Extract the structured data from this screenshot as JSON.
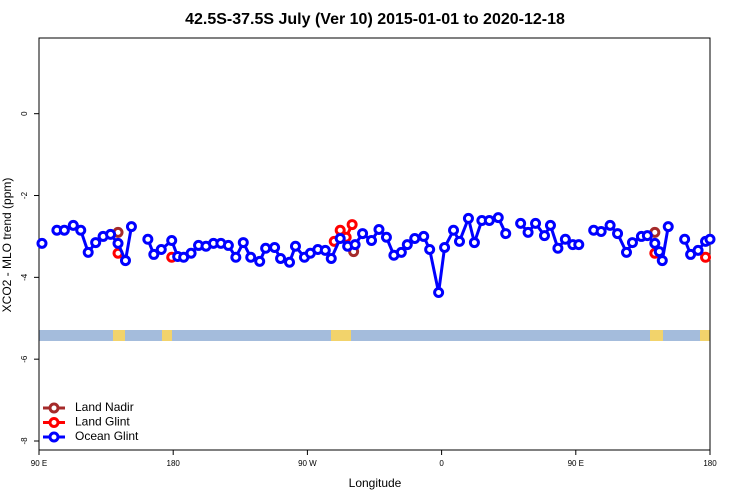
{
  "chart_data": {
    "type": "line",
    "title": "42.5S-37.5S July (Ver 10)   2015-01-01 to 2020-12-18",
    "x_label": "Longitude",
    "y_label": "XCO2 - MLO trend (ppm)",
    "xlim": [
      90,
      540
    ],
    "xticks": [
      {
        "value": 90,
        "label": "90 E"
      },
      {
        "value": 180,
        "label": "180"
      },
      {
        "value": 270,
        "label": "90 W"
      },
      {
        "value": 360,
        "label": "0"
      },
      {
        "value": 450,
        "label": "90 E"
      },
      {
        "value": 540,
        "label": "180"
      }
    ],
    "ylim": [
      -8.22,
      1.85
    ],
    "yticks": [
      0,
      -2,
      -4,
      -6,
      -8
    ],
    "legend": "bottom-left",
    "series": [
      {
        "name": "Land Nadir",
        "color": "#a52a2a",
        "x": [
          143,
          null,
          301,
          null,
          503
        ],
        "values": [
          -2.9,
          null,
          -3.37,
          null,
          -2.9
        ]
      },
      {
        "name": "Land Glint",
        "color": "#ff0000",
        "x": [
          143,
          null,
          179,
          null,
          288,
          292,
          296,
          300,
          null,
          503,
          null,
          537
        ],
        "values": [
          -3.41,
          null,
          -3.51,
          null,
          -3.12,
          -2.85,
          -3.02,
          -2.71,
          null,
          -3.41,
          null,
          -3.51
        ]
      },
      {
        "name": "Ocean Glint",
        "color": "#0000ff",
        "x": [
          92,
          null,
          102,
          107,
          113,
          118,
          123,
          128,
          133,
          138,
          143,
          148,
          152,
          null,
          163,
          167,
          172,
          179,
          183,
          187,
          192,
          197,
          202,
          207,
          212,
          217,
          222,
          227,
          232,
          238,
          242,
          248,
          252,
          258,
          262,
          268,
          272,
          277,
          282,
          286,
          292,
          297,
          302,
          307,
          313,
          318,
          323,
          328,
          333,
          337,
          342,
          348,
          352,
          358,
          362,
          368,
          372,
          378,
          382,
          387,
          392,
          398,
          403,
          null,
          413,
          418,
          423,
          429,
          433,
          438,
          443,
          448,
          452,
          null,
          462,
          467,
          473,
          478,
          484,
          488,
          494,
          498,
          503,
          506,
          508,
          512,
          null,
          523,
          527,
          532,
          537,
          540
        ],
        "values": [
          -3.17,
          null,
          -2.85,
          -2.85,
          -2.73,
          -2.85,
          -3.39,
          -3.15,
          -3.0,
          -2.95,
          -3.17,
          -3.59,
          -2.76,
          null,
          -3.07,
          -3.44,
          -3.32,
          -3.1,
          -3.49,
          -3.51,
          -3.41,
          -3.22,
          -3.24,
          -3.17,
          -3.17,
          -3.22,
          -3.51,
          -3.15,
          -3.51,
          -3.61,
          -3.29,
          -3.27,
          -3.54,
          -3.63,
          -3.24,
          -3.51,
          -3.41,
          -3.32,
          -3.34,
          -3.54,
          -3.05,
          -3.24,
          -3.2,
          -2.93,
          -3.1,
          -2.83,
          -3.02,
          -3.46,
          -3.39,
          -3.2,
          -3.05,
          -3.0,
          -3.32,
          -4.37,
          -3.27,
          -2.85,
          -3.12,
          -2.56,
          -3.15,
          -2.61,
          -2.61,
          -2.54,
          -2.93,
          null,
          -2.68,
          -2.9,
          -2.68,
          -2.98,
          -2.73,
          -3.29,
          -3.07,
          -3.2,
          -3.2,
          null,
          -2.85,
          -2.88,
          -2.73,
          -2.93,
          -3.39,
          -3.15,
          -3.0,
          -2.98,
          -3.17,
          -3.37,
          -3.59,
          -2.76,
          null,
          -3.07,
          -3.44,
          -3.34,
          -3.12,
          -3.07
        ]
      }
    ]
  }
}
